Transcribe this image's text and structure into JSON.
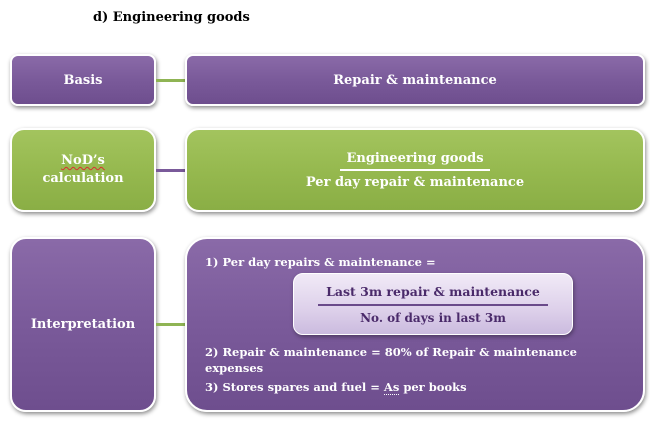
{
  "heading": "d)  Engineering goods",
  "rows": {
    "basis": {
      "label": "Basis",
      "value": "Repair & maintenance"
    },
    "nod": {
      "label_line1": "NoD’s",
      "label_line2": "calculation",
      "numerator": "Engineering goods",
      "denominator": "Per day repair & maintenance"
    },
    "interpretation": {
      "label": "Interpretation",
      "line1": "1) Per day repairs & maintenance =",
      "fraction_numerator": "Last  3m repair & maintenance",
      "fraction_denominator": "No. of days in last  3m",
      "line2": "2) Repair & maintenance = 80% of Repair & maintenance expenses",
      "line3_prefix": "3) Stores spares and fuel = ",
      "line3_as": "As",
      "line3_suffix": " per books"
    }
  },
  "colors": {
    "purple": "#7a5a9a",
    "green": "#96b94f",
    "inner_text": "#4a2a6a"
  }
}
